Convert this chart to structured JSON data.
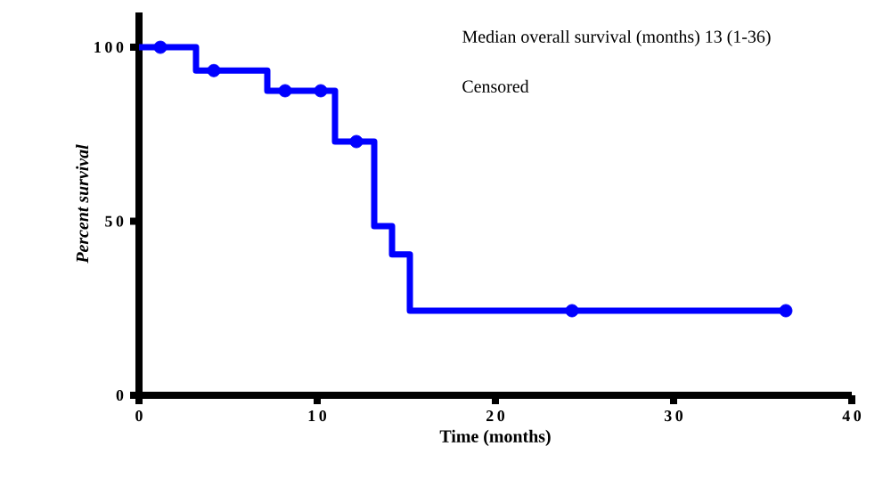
{
  "chart_data": {
    "type": "step",
    "xlabel": "Time (months)",
    "ylabel": "Percent survival",
    "annotations": [
      "Median overall survival (months) 13 (1-36)",
      "Censored"
    ],
    "xlim": [
      0,
      40
    ],
    "xticks": [
      0,
      10,
      20,
      30,
      40
    ],
    "ylim": [
      0,
      110
    ],
    "yticks": [
      0,
      50,
      100
    ],
    "grid": false,
    "series": [
      {
        "color": "#0000ff",
        "x": [
          0,
          3.2,
          7.2,
          11,
          13.2,
          14.2,
          15.2,
          36.3
        ],
        "values": [
          100,
          93.3,
          87.5,
          72.9,
          48.6,
          40.5,
          24.3,
          24.3
        ]
      },
      {
        "type": "scatter",
        "marker": "circle",
        "color": "#0000ff",
        "x": [
          1.2,
          4.2,
          8.2,
          10.2,
          12.2,
          24.3,
          36.3
        ],
        "values": [
          100,
          93.3,
          87.5,
          87.5,
          72.9,
          24.3,
          24.3
        ]
      }
    ]
  }
}
